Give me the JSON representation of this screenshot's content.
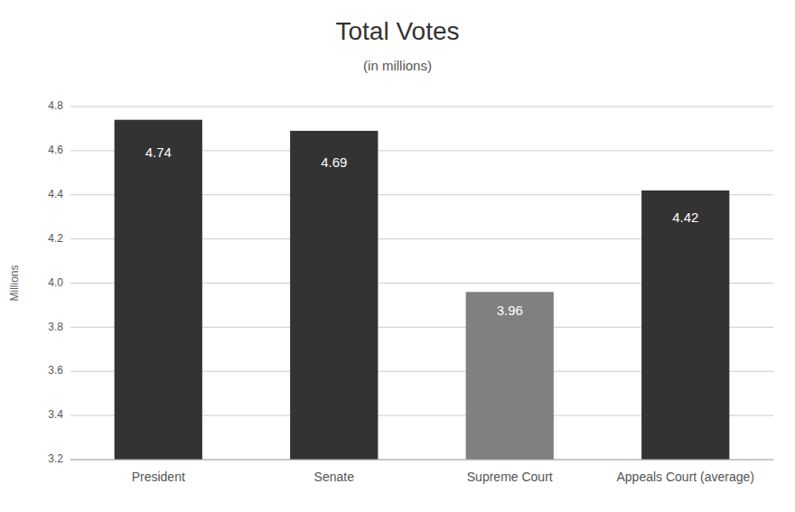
{
  "chart_data": {
    "type": "bar",
    "title": "Total Votes",
    "subtitle": "(in millions)",
    "ylabel": "Millions",
    "categories": [
      "President",
      "Senate",
      "Supreme Court",
      "Appeals Court (average)"
    ],
    "values": [
      4.74,
      4.69,
      3.96,
      4.42
    ],
    "colors": [
      "#333333",
      "#333333",
      "#808080",
      "#333333"
    ],
    "ylim": [
      3.2,
      4.8
    ],
    "yticks": [
      3.2,
      3.4,
      3.6,
      3.8,
      {
        "value": 4.0,
        "label": "4.0"
      },
      4.2,
      4.4,
      4.6,
      4.8
    ],
    "grid": true,
    "data_labels": true
  }
}
